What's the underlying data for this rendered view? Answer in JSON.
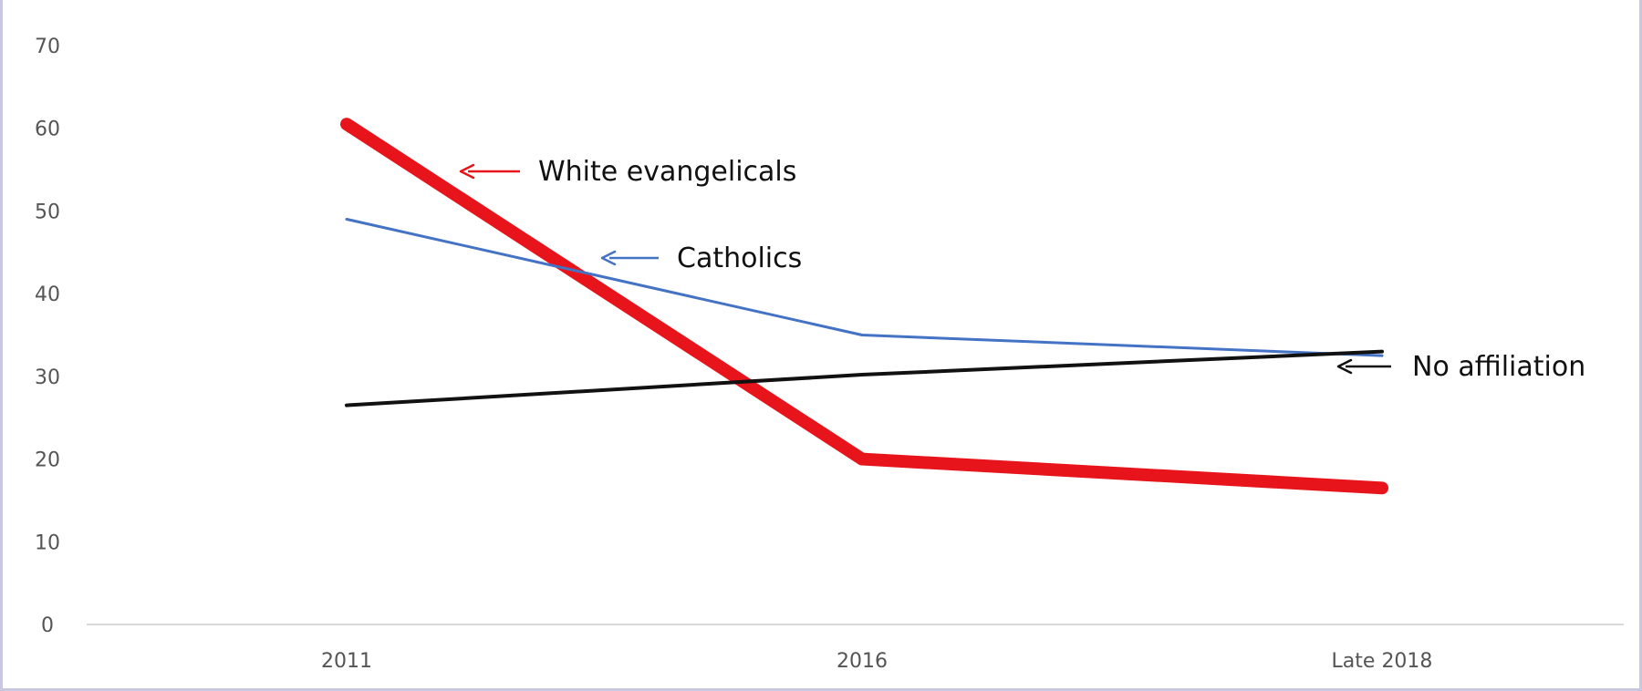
{
  "chart_data": {
    "type": "line",
    "title": "",
    "xlabel": "",
    "ylabel": "",
    "categories": [
      "2011",
      "2016",
      "Late 2018"
    ],
    "ylim": [
      0,
      70
    ],
    "yticks": [
      0,
      10,
      20,
      30,
      40,
      50,
      60,
      70
    ],
    "grid": false,
    "legend": "none",
    "series": [
      {
        "name": "White evangelicals",
        "color": "#e8141b",
        "values": [
          60.5,
          20,
          16.5
        ]
      },
      {
        "name": "Catholics",
        "color": "#4472c4",
        "values": [
          49,
          35,
          32.5
        ]
      },
      {
        "name": "No affiliation",
        "color": "#111111",
        "values": [
          26.5,
          30.2,
          33
        ]
      }
    ],
    "annotations": [
      {
        "text": "White evangelicals",
        "series": 0,
        "arrow_color": "#e8141b"
      },
      {
        "text": "Catholics",
        "series": 1,
        "arrow_color": "#4472c4"
      },
      {
        "text": "No affiliation",
        "series": 2,
        "arrow_color": "#111111"
      }
    ]
  }
}
